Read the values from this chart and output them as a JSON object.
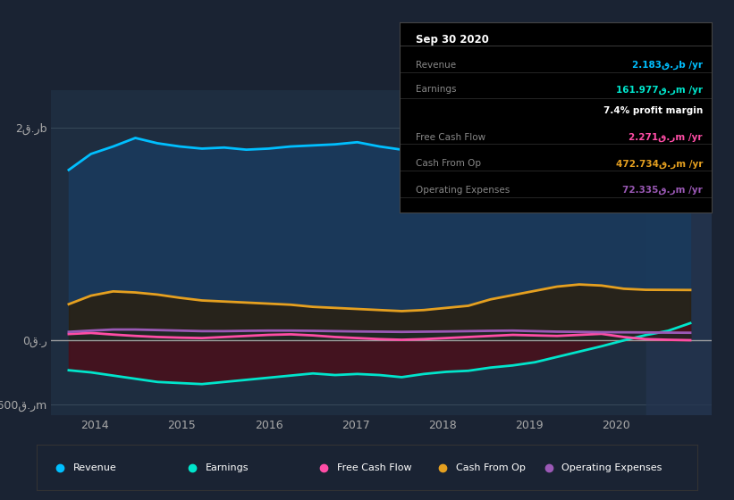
{
  "bg_color": "#1a2333",
  "plot_bg_color": "#1e2d40",
  "xlabel_years": [
    "2014",
    "2015",
    "2016",
    "2017",
    "2018",
    "2019",
    "2020"
  ],
  "legend_items": [
    {
      "label": "Revenue",
      "color": "#00bfff"
    },
    {
      "label": "Earnings",
      "color": "#00e5cc"
    },
    {
      "label": "Free Cash Flow",
      "color": "#ff4da6"
    },
    {
      "label": "Cash From Op",
      "color": "#e5a020"
    },
    {
      "label": "Operating Expenses",
      "color": "#9b59b6"
    }
  ],
  "info_box": {
    "title": "Sep 30 2020",
    "rows": [
      {
        "label": "Revenue",
        "value": "2.183ق.رb /yr",
        "color": "#00bfff"
      },
      {
        "label": "Earnings",
        "value": "161.977ق.رm /yr",
        "color": "#00e5cc"
      },
      {
        "label": "",
        "value": "7.4% profit margin",
        "color": "#ffffff"
      },
      {
        "label": "Free Cash Flow",
        "value": "2.271ق.رm /yr",
        "color": "#ff4da6"
      },
      {
        "label": "Cash From Op",
        "value": "472.734ق.رm /yr",
        "color": "#e5a020"
      },
      {
        "label": "Operating Expenses",
        "value": "72.335ق.رm /yr",
        "color": "#9b59b6"
      }
    ]
  },
  "revenue": [
    1600,
    1750,
    1820,
    1900,
    1850,
    1820,
    1800,
    1810,
    1790,
    1800,
    1820,
    1830,
    1840,
    1860,
    1820,
    1790,
    1800,
    1820,
    1850,
    1870,
    1860,
    1870,
    1900,
    1950,
    2000,
    2050,
    2100,
    2140,
    2183
  ],
  "earnings": [
    -280,
    -300,
    -330,
    -360,
    -390,
    -400,
    -410,
    -390,
    -370,
    -350,
    -330,
    -310,
    -325,
    -315,
    -325,
    -345,
    -315,
    -295,
    -285,
    -255,
    -235,
    -205,
    -155,
    -105,
    -55,
    0,
    50,
    90,
    162
  ],
  "free_cash_flow": [
    60,
    70,
    55,
    42,
    32,
    26,
    22,
    32,
    42,
    52,
    57,
    47,
    32,
    22,
    12,
    6,
    12,
    22,
    32,
    42,
    52,
    47,
    42,
    52,
    62,
    32,
    12,
    6,
    2
  ],
  "cash_from_op": [
    340,
    420,
    460,
    450,
    430,
    400,
    375,
    365,
    355,
    345,
    335,
    315,
    305,
    295,
    285,
    275,
    285,
    305,
    325,
    385,
    425,
    465,
    505,
    525,
    515,
    485,
    475,
    474,
    473
  ],
  "operating_expenses": [
    80,
    92,
    102,
    102,
    97,
    92,
    87,
    87,
    90,
    92,
    92,
    90,
    87,
    84,
    82,
    80,
    82,
    84,
    87,
    90,
    92,
    87,
    82,
    80,
    77,
    76,
    75,
    73,
    72
  ]
}
